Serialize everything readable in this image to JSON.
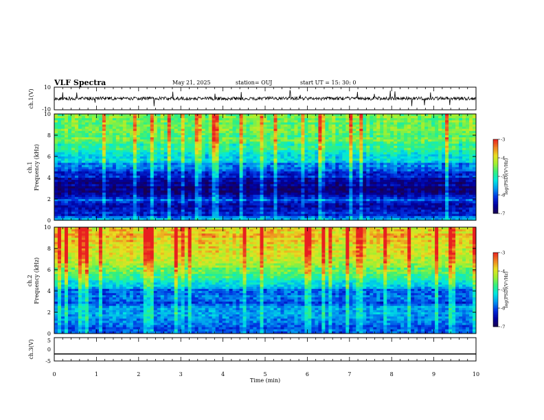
{
  "header": {
    "title": "VLF Spectra",
    "date": "May 21, 2025",
    "station": "station= OUJ",
    "start_time": "start  UT =   15: 30: 0"
  },
  "colors": {
    "background": "#ffffff",
    "axes": "#000000",
    "colormap": [
      "#180050",
      "#0000a0",
      "#0030e0",
      "#0098f0",
      "#00e8e0",
      "#30f080",
      "#a0f030",
      "#e8e020",
      "#f08020",
      "#e82020"
    ]
  },
  "chart_data": [
    {
      "panel": "ch1-waveform",
      "type": "line",
      "ylabel": "ch.1(V)",
      "ylim": [
        -10,
        10
      ],
      "yticks": [
        "10",
        "-10"
      ],
      "xlim": [
        0,
        10
      ],
      "description_values": {
        "baseline": 0,
        "noise_amplitude": 1.5,
        "spike_amplitude": 6
      }
    },
    {
      "panel": "ch1-spectrogram",
      "type": "heatmap",
      "ylabel_1": "ch.1",
      "ylabel_2": "Frequency (kHz)",
      "ylim": [
        0,
        10
      ],
      "yticks": [
        "0",
        "2",
        "4",
        "6",
        "8",
        "10"
      ],
      "xlim": [
        0,
        10
      ],
      "colorbar": {
        "label": "log(PSD)(V²/Hz)",
        "range": [
          -7,
          -3
        ],
        "ticks": [
          "-3",
          "-4",
          "-5",
          "-6",
          "-7"
        ]
      },
      "profile": [
        {
          "f": 0.0,
          "v": -5.6
        },
        {
          "f": 0.5,
          "v": -6.2
        },
        {
          "f": 1.0,
          "v": -6.6
        },
        {
          "f": 1.5,
          "v": -6.4
        },
        {
          "f": 2.0,
          "v": -6.0
        },
        {
          "f": 2.5,
          "v": -6.5
        },
        {
          "f": 3.0,
          "v": -6.9
        },
        {
          "f": 3.5,
          "v": -6.6
        },
        {
          "f": 4.0,
          "v": -6.3
        },
        {
          "f": 5.0,
          "v": -5.8
        },
        {
          "f": 6.0,
          "v": -5.2
        },
        {
          "f": 7.0,
          "v": -4.8
        },
        {
          "f": 8.0,
          "v": -4.6
        },
        {
          "f": 9.0,
          "v": -4.5
        },
        {
          "f": 10.0,
          "v": -4.6
        }
      ]
    },
    {
      "panel": "ch2-spectrogram",
      "type": "heatmap",
      "ylabel_1": "ch.2",
      "ylabel_2": "Frequency (kHz)",
      "ylim": [
        0,
        10
      ],
      "yticks": [
        "0",
        "2",
        "4",
        "6",
        "8",
        "10"
      ],
      "xlim": [
        0,
        10
      ],
      "colorbar": {
        "label": "log(PSD)(V²/Hz)",
        "range": [
          -7,
          -3
        ],
        "ticks": [
          "-3",
          "-4",
          "-5",
          "-6",
          "-7"
        ]
      },
      "profile": [
        {
          "f": 0.0,
          "v": -6.0
        },
        {
          "f": 1.0,
          "v": -5.8
        },
        {
          "f": 2.0,
          "v": -5.6
        },
        {
          "f": 3.0,
          "v": -6.0
        },
        {
          "f": 4.0,
          "v": -5.8
        },
        {
          "f": 5.0,
          "v": -5.0
        },
        {
          "f": 6.0,
          "v": -4.6
        },
        {
          "f": 7.0,
          "v": -4.2
        },
        {
          "f": 8.0,
          "v": -3.9
        },
        {
          "f": 9.0,
          "v": -3.8
        },
        {
          "f": 10.0,
          "v": -3.8
        }
      ]
    },
    {
      "panel": "ch3-waveform",
      "type": "line",
      "ylabel": "ch.3(V)",
      "ylim": [
        -5,
        5
      ],
      "yticks": [
        "5",
        "0",
        "-5"
      ],
      "xlim": [
        0,
        10
      ],
      "description_values": {
        "constant_value": -2
      }
    }
  ],
  "xaxis": {
    "label": "Time (min)",
    "ticks": [
      "0",
      "1",
      "2",
      "3",
      "4",
      "5",
      "6",
      "7",
      "8",
      "9",
      "10"
    ],
    "range": [
      0,
      10
    ]
  }
}
